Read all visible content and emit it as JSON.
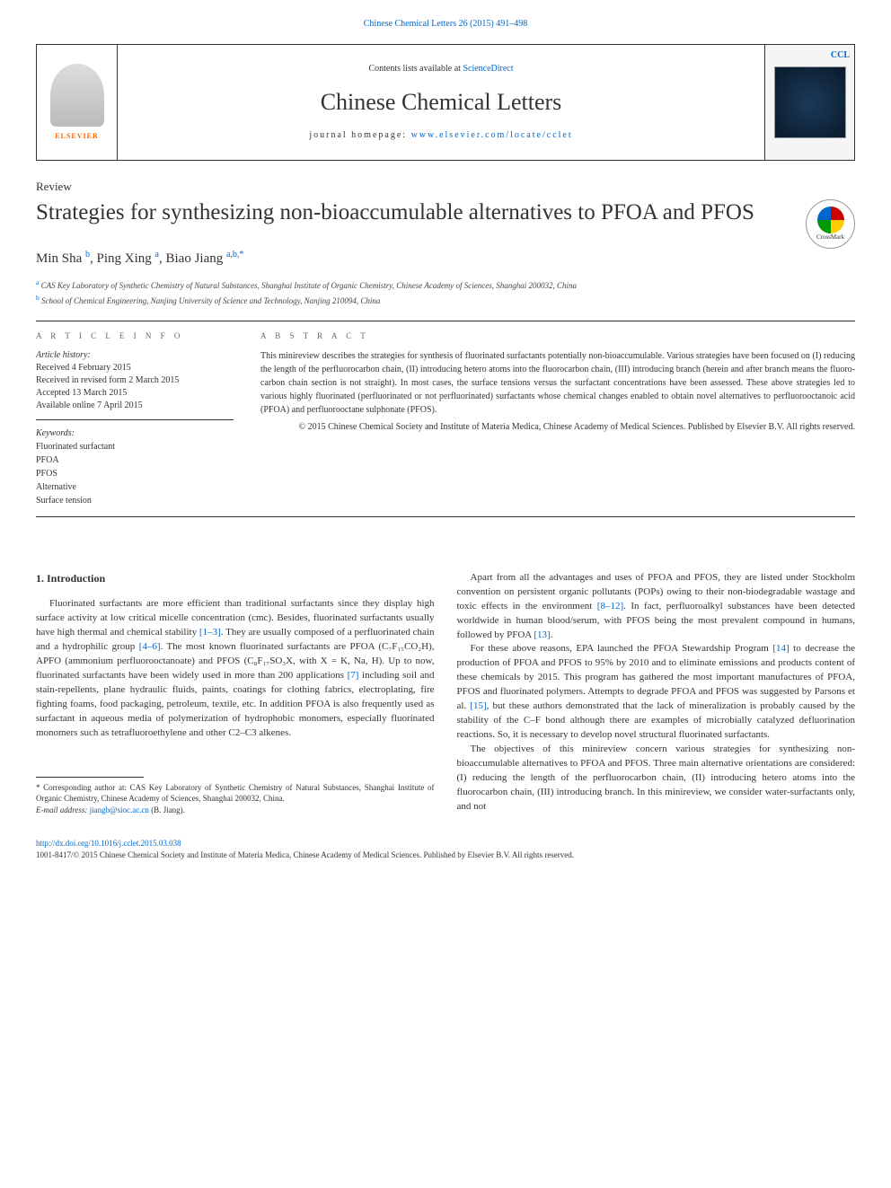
{
  "topLink": "Chinese Chemical Letters 26 (2015) 491–498",
  "header": {
    "contentsPrefix": "Contents lists available at ",
    "contentsLink": "ScienceDirect",
    "journalName": "Chinese Chemical Letters",
    "homepagePrefix": "journal homepage: ",
    "homepageLink": "www.elsevier.com/locate/cclet",
    "elsevierLabel": "ELSEVIER",
    "coverLabel": "CCL"
  },
  "article": {
    "type": "Review",
    "title": "Strategies for synthesizing non-bioaccumulable alternatives to PFOA and PFOS",
    "crossmark": "CrossMark",
    "authorsHtml": "Min Sha <sup>b</sup>, Ping Xing <sup>a</sup>, Biao Jiang <sup>a,b,*</sup>",
    "affiliations": {
      "a": "CAS Key Laboratory of Synthetic Chemistry of Natural Substances, Shanghai Institute of Organic Chemistry, Chinese Academy of Sciences, Shanghai 200032, China",
      "b": "School of Chemical Engineering, Nanjing University of Science and Technology, Nanjing 210094, China"
    }
  },
  "info": {
    "heading": "A R T I C L E   I N F O",
    "historyLabel": "Article history:",
    "received": "Received 4 February 2015",
    "revised": "Received in revised form 2 March 2015",
    "accepted": "Accepted 13 March 2015",
    "online": "Available online 7 April 2015",
    "keywordsLabel": "Keywords:",
    "keywords": [
      "Fluorinated surfactant",
      "PFOA",
      "PFOS",
      "Alternative",
      "Surface tension"
    ]
  },
  "abstract": {
    "heading": "A B S T R A C T",
    "text": "This minireview describes the strategies for synthesis of fluorinated surfactants potentially non-bioaccumulable. Various strategies have been focused on (I) reducing the length of the perfluorocarbon chain, (II) introducing hetero atoms into the fluorocarbon chain, (III) introducing branch (herein and after branch means the fluoro-carbon chain section is not straight). In most cases, the surface tensions versus the surfactant concentrations have been assessed. These above strategies led to various highly fluorinated (perfluorinated or not perfluorinated) surfactants whose chemical changes enabled to obtain novel alternatives to perfluorooctanoic acid (PFOA) and perfluorooctane sulphonate (PFOS).",
    "copyright": "© 2015 Chinese Chemical Society and Institute of Materia Medica, Chinese Academy of Medical Sciences. Published by Elsevier B.V. All rights reserved."
  },
  "body": {
    "section1Heading": "1. Introduction",
    "col1p1a": "Fluorinated surfactants are more efficient than traditional surfactants since they display high surface activity at low critical micelle concentration (cmc). Besides, fluorinated surfactants usually have high thermal and chemical stability ",
    "col1ref1": "[1–3]",
    "col1p1b": ". They are usually composed of a perfluorinated chain and a hydrophilic group ",
    "col1ref2": "[4–6]",
    "col1p1c": ". The most known fluorinated surfactants are PFOA (C₇F₁₅CO₂H), APFO (ammonium perfluorooctanoate) and PFOS (C₈F₁₇SO₃X, with X = K, Na, H). Up to now, fluorinated surfactants have been widely used in more than 200 applications ",
    "col1ref3": "[7]",
    "col1p1d": " including soil and stain-repellents, plane hydraulic fluids, paints, coatings for clothing fabrics, electroplating, fire fighting foams, food packaging, petroleum, textile, etc. In addition PFOA is also frequently used as surfactant in aqueous media of polymerization of hydrophobic monomers, especially fluorinated monomers such as tetrafluoroethylene and other C2–C3 alkenes.",
    "col2p1a": "Apart from all the advantages and uses of PFOA and PFOS, they are listed under Stockholm convention on persistent organic pollutants (POPs) owing to their non-biodegradable wastage and toxic effects in the environment ",
    "col2ref1": "[8–12]",
    "col2p1b": ". In fact, perfluoroalkyl substances have been detected worldwide in human blood/serum, with PFOS being the most prevalent compound in humans, followed by PFOA ",
    "col2ref2": "[13]",
    "col2p1c": ".",
    "col2p2a": "For these above reasons, EPA launched the PFOA Stewardship Program ",
    "col2ref3": "[14]",
    "col2p2b": " to decrease the production of PFOA and PFOS to 95% by 2010 and to eliminate emissions and products content of these chemicals by 2015. This program has gathered the most important manufactures of PFOA, PFOS and fluorinated polymers. Attempts to degrade PFOA and PFOS was suggested by Parsons et al. ",
    "col2ref4": "[15]",
    "col2p2c": ", but these authors demonstrated that the lack of mineralization is probably caused by the stability of the C–F bond although there are examples of microbially catalyzed defluorination reactions. So, it is necessary to develop novel structural fluorinated surfactants.",
    "col2p3": "The objectives of this minireview concern various strategies for synthesizing non-bioaccumulable alternatives to PFOA and PFOS. Three main alternative orientations are considered: (I) reducing the length of the perfluorocarbon chain, (II) introducing hetero atoms into the fluorocarbon chain, (III) introducing branch. In this minireview, we consider water-surfactants only, and not"
  },
  "footnote": {
    "corresponding": "* Corresponding author at: CAS Key Laboratory of Synthetic Chemistry of Natural Substances, Shanghai Institute of Organic Chemistry, Chinese Academy of Sciences, Shanghai 200032, China.",
    "emailLabel": "E-mail address: ",
    "email": "jiangb@sioc.ac.cn",
    "emailSuffix": " (B. Jiang)."
  },
  "footer": {
    "doi": "http://dx.doi.org/10.1016/j.cclet.2015.03.038",
    "copyright": "1001-8417/© 2015 Chinese Chemical Society and Institute of Materia Medica, Chinese Academy of Medical Sciences. Published by Elsevier B.V. All rights reserved."
  }
}
